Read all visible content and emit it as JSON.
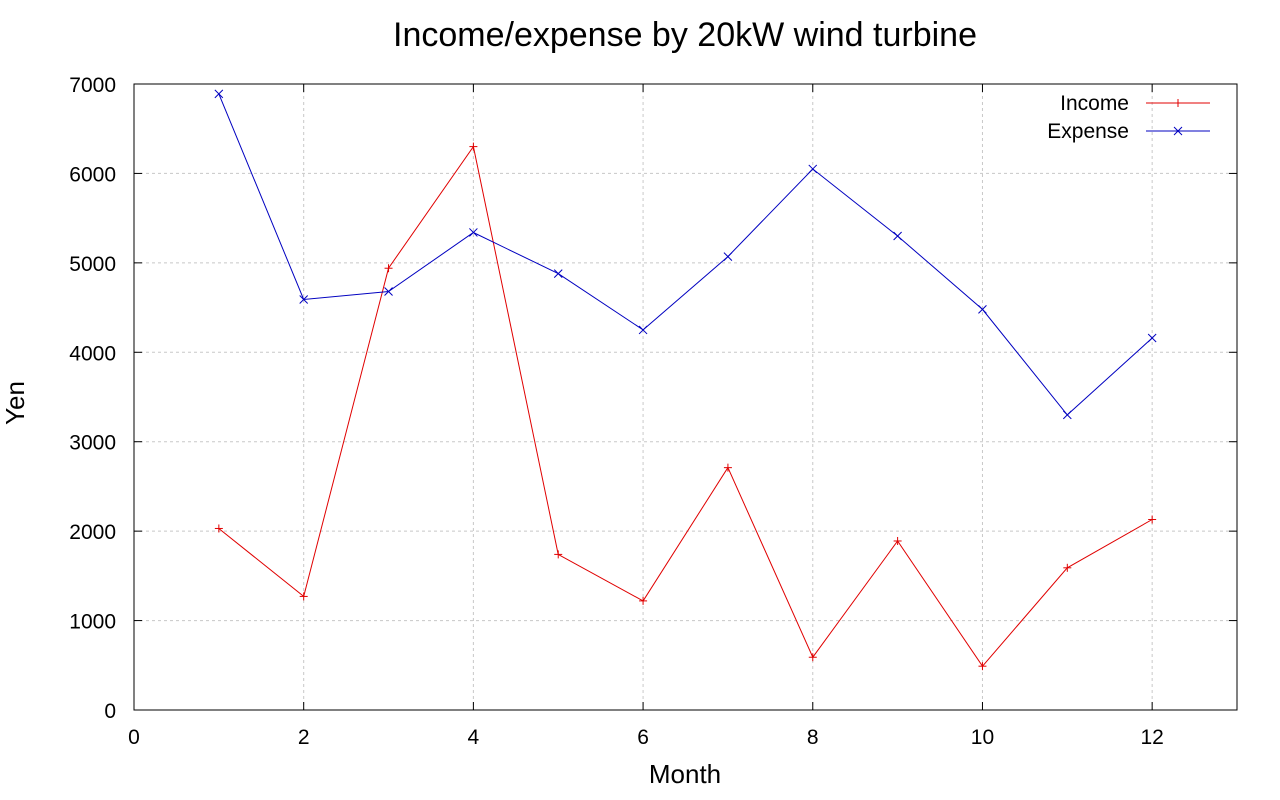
{
  "chart_data": {
    "type": "line",
    "title": "Income/expense by 20kW wind turbine",
    "xlabel": "Month",
    "ylabel": "Yen",
    "xlim": [
      0,
      13
    ],
    "ylim": [
      0,
      7000
    ],
    "xticks": [
      0,
      2,
      4,
      6,
      8,
      10,
      12
    ],
    "yticks": [
      0,
      1000,
      2000,
      3000,
      4000,
      5000,
      6000,
      7000
    ],
    "grid": true,
    "legend_position": "top-right",
    "x": [
      1,
      2,
      3,
      4,
      5,
      6,
      7,
      8,
      9,
      10,
      11,
      12
    ],
    "series": [
      {
        "name": "Income",
        "color": "#e00000",
        "marker": "plus",
        "values": [
          2030,
          1270,
          4940,
          6300,
          1740,
          1220,
          2710,
          590,
          1890,
          490,
          1590,
          2130
        ]
      },
      {
        "name": "Expense",
        "color": "#0000c0",
        "marker": "cross",
        "values": [
          6890,
          4590,
          4680,
          5340,
          4880,
          4250,
          5070,
          6050,
          5300,
          4480,
          3300,
          4160
        ]
      }
    ]
  }
}
